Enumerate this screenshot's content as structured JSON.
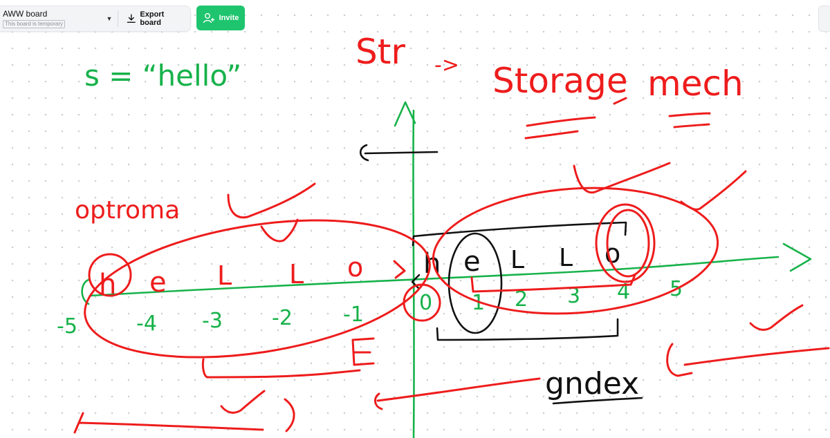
{
  "board": {
    "name": "AWW board",
    "status_badge": "This board is temporary",
    "export_label": "Export board",
    "invite_label": "Invite",
    "accent_color": "#1ec46e"
  },
  "icons": [
    "chevron-down-icon",
    "download-icon",
    "add-user-icon"
  ],
  "ink_colors": {
    "red": "#ee1c1c",
    "green": "#16b24a",
    "black": "#111111"
  },
  "notes": {
    "string_def": "s = “hello”",
    "str": "Str",
    "arrow": "->",
    "storage": "Storage",
    "mech": "mech",
    "optional": "optroma",
    "index": "gndex"
  },
  "letters_left": [
    "h",
    "e",
    "L",
    "L",
    "o"
  ],
  "letters_right": [
    "h",
    "e",
    "L",
    "L",
    "o"
  ],
  "neg_indices": [
    "-5",
    "-4",
    "-3",
    "-2",
    "-1"
  ],
  "pos_indices": [
    "0",
    "1",
    "2",
    "3",
    "4",
    "5"
  ]
}
